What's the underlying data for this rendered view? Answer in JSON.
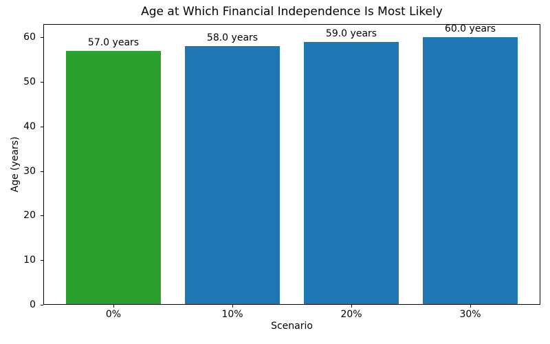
{
  "chart_data": {
    "type": "bar",
    "title": "Age at Which Financial Independence Is Most Likely",
    "xlabel": "Scenario",
    "ylabel": "Age (years)",
    "categories": [
      "0%",
      "10%",
      "20%",
      "30%"
    ],
    "values": [
      57.0,
      58.0,
      59.0,
      60.0
    ],
    "bar_labels": [
      "57.0 years",
      "58.0 years",
      "59.0 years",
      "60.0 years"
    ],
    "bar_colors": [
      "#2ca02c",
      "#1f77b4",
      "#1f77b4",
      "#1f77b4"
    ],
    "default_bar_color": "#1f77b4",
    "highlight_color": "#2ca02c",
    "yticks": [
      0,
      10,
      20,
      30,
      40,
      50,
      60
    ],
    "ylim": [
      0,
      63
    ],
    "grid": false,
    "legend_position": "none",
    "background_color": "#ffffff",
    "text_color": "#000000"
  }
}
